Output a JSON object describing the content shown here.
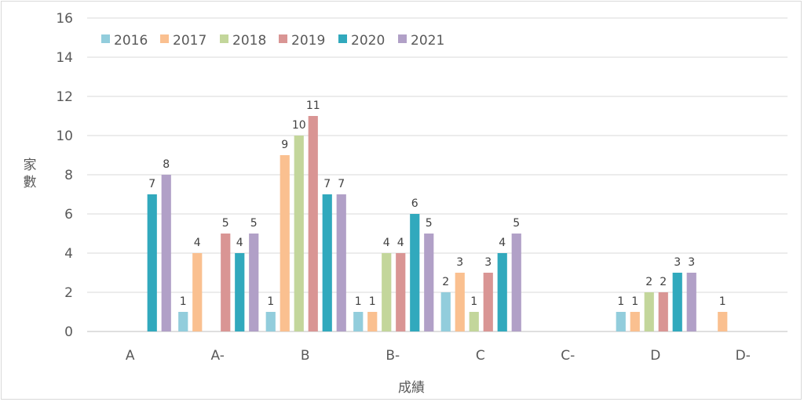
{
  "chart_data": {
    "type": "bar",
    "title": "",
    "xlabel": "成績",
    "ylabel": "家數",
    "ylim": [
      0,
      16
    ],
    "yticks": [
      0,
      2,
      4,
      6,
      8,
      10,
      12,
      14,
      16
    ],
    "grid": true,
    "legend_position": "top-left",
    "categories": [
      "A",
      "A-",
      "B",
      "B-",
      "C",
      "C-",
      "D",
      "D-"
    ],
    "series": [
      {
        "name": "2016",
        "color": "#92cddc",
        "values": [
          0,
          1,
          1,
          1,
          2,
          0,
          1,
          0
        ]
      },
      {
        "name": "2017",
        "color": "#fac090",
        "values": [
          0,
          4,
          9,
          1,
          3,
          0,
          1,
          1
        ]
      },
      {
        "name": "2018",
        "color": "#c3d69b",
        "values": [
          0,
          0,
          10,
          4,
          1,
          0,
          2,
          0
        ]
      },
      {
        "name": "2019",
        "color": "#d99594",
        "values": [
          0,
          5,
          11,
          4,
          3,
          0,
          2,
          0
        ]
      },
      {
        "name": "2020",
        "color": "#31a9bd",
        "values": [
          7,
          4,
          7,
          6,
          4,
          0,
          3,
          0
        ]
      },
      {
        "name": "2021",
        "color": "#b1a0c7",
        "values": [
          8,
          5,
          7,
          5,
          5,
          0,
          3,
          0
        ]
      }
    ],
    "hidden_zero_labels": [
      [
        0,
        1,
        2,
        3
      ],
      [
        2
      ],
      [],
      [],
      [],
      [
        0,
        1,
        2,
        3,
        4,
        5
      ],
      [],
      [
        0,
        2,
        3,
        4,
        5
      ]
    ]
  }
}
